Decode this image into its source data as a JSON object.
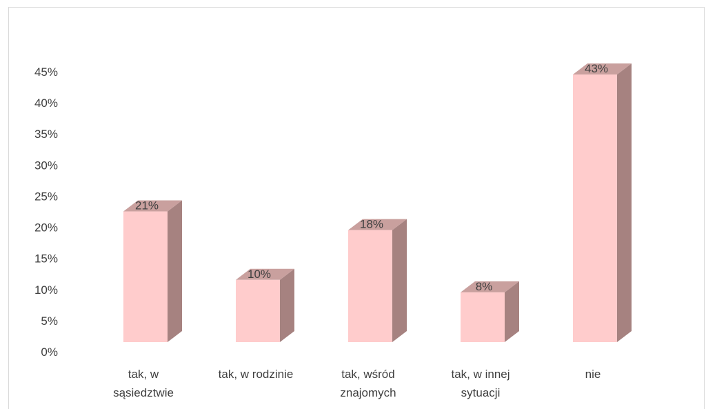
{
  "chart_data": {
    "type": "bar",
    "categories": [
      [
        "tak, w",
        "sąsiedztwie"
      ],
      [
        "tak, w rodzinie"
      ],
      [
        "tak, wśród",
        "znajomych"
      ],
      [
        "tak, w innej",
        "sytuacji"
      ],
      [
        "nie"
      ]
    ],
    "values": [
      21,
      10,
      18,
      8,
      43
    ],
    "data_labels": [
      "21%",
      "10%",
      "18%",
      "8%",
      "43%"
    ],
    "y_ticks": [
      "0%",
      "5%",
      "10%",
      "15%",
      "20%",
      "25%",
      "30%",
      "35%",
      "40%",
      "45%"
    ],
    "ylim": [
      0,
      45
    ],
    "grid": false,
    "bar_style": "3d",
    "colors": {
      "front": "#ffcccc",
      "side": "#a68280",
      "top": "#c9a09e",
      "text": "#404040",
      "border": "#d9d9d9"
    }
  }
}
